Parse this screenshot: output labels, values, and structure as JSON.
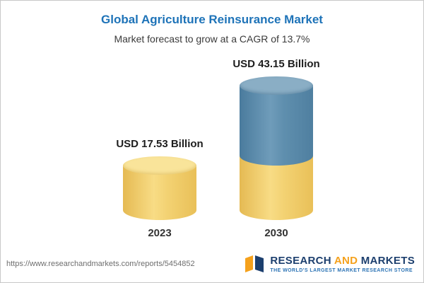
{
  "header": {
    "title": "Global Agriculture Reinsurance Market",
    "subtitle": "Market forecast to grow at a CAGR of 13.7%"
  },
  "chart_data": {
    "type": "bar",
    "title": "Global Agriculture Reinsurance Market",
    "subtitle": "Market forecast to grow at a CAGR of 13.7%",
    "categories": [
      "2023",
      "2030"
    ],
    "values": [
      17.53,
      43.15
    ],
    "unit": "USD Billion",
    "value_labels": [
      "USD 17.53 Billion",
      "USD 43.15 Billion"
    ],
    "cagr": "13.7%",
    "bar_colors": [
      "#f2cf6a",
      "#5b89ab"
    ],
    "ylim": [
      0,
      45
    ],
    "grid": false,
    "legend": "none",
    "layout_note": "cylindrical 3D bars; 2030 bar stacked with yellow base equal to 2023 value and blue growth portion on top"
  },
  "footer": {
    "url": "https://www.researchandmarkets.com/reports/5454852",
    "logo": {
      "word1": "RESEARCH",
      "word2": "AND",
      "word3": "MARKETS",
      "tagline": "THE WORLD'S LARGEST MARKET RESEARCH STORE"
    }
  },
  "colors": {
    "title_blue": "#1e73b8",
    "yellow": "#f2cf6a",
    "yellow_top": "#f9e49a",
    "blue": "#5b89ab",
    "blue_top": "#8aaec5",
    "logo_navy": "#1c3f6e",
    "logo_orange": "#f5a11c",
    "tagline_blue": "#2d74b5"
  }
}
